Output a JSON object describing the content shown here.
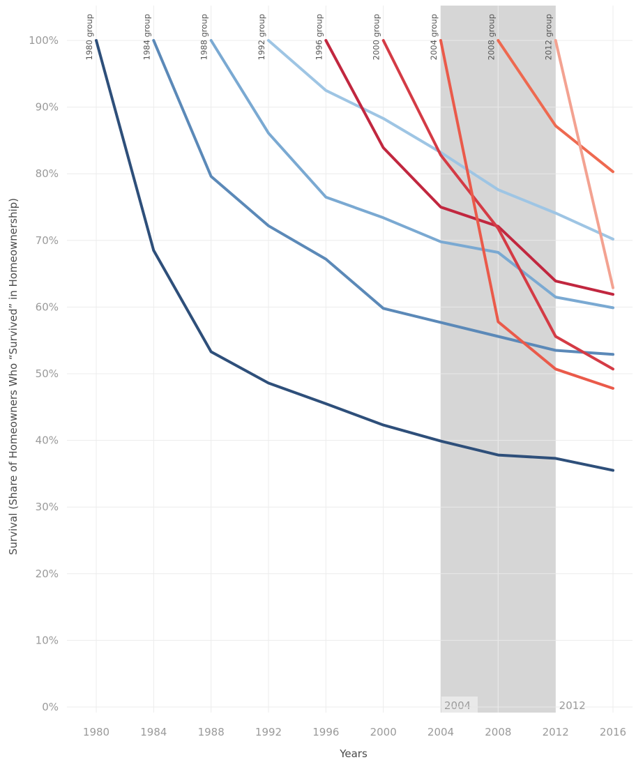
{
  "chart_data": {
    "type": "line",
    "title": "",
    "xlabel": "Years",
    "ylabel": "Survival (Share of Homeowners Who “Survived” in Homeownership)",
    "x_ticks": [
      "1980",
      "1984",
      "1988",
      "1992",
      "1996",
      "2000",
      "2004",
      "2008",
      "2012",
      "2016"
    ],
    "y_ticks": [
      "0%",
      "10%",
      "20%",
      "30%",
      "40%",
      "50%",
      "60%",
      "70%",
      "80%",
      "90%",
      "100%"
    ],
    "xlim": [
      1978,
      2017.5
    ],
    "ylim": [
      0,
      100
    ],
    "grid": true,
    "shaded_band": {
      "from": 2004,
      "to": 2012,
      "color": "#d6d6d6",
      "labels": [
        "2004",
        "2012"
      ]
    },
    "series": [
      {
        "name": "1980 group",
        "color": "#2e4f7a",
        "x": [
          1980,
          1984,
          1988,
          1992,
          1996,
          2000,
          2004,
          2008,
          2012,
          2016
        ],
        "values": [
          100,
          68.5,
          53.3,
          48.6,
          45.5,
          42.3,
          39.9,
          37.8,
          37.3,
          35.5
        ]
      },
      {
        "name": "1984 group",
        "color": "#5b89b8",
        "x": [
          1984,
          1988,
          1992,
          1996,
          2000,
          2004,
          2008,
          2012,
          2016
        ],
        "values": [
          100,
          79.6,
          72.2,
          67.2,
          59.8,
          57.7,
          55.6,
          53.5,
          52.9
        ]
      },
      {
        "name": "1988 group",
        "color": "#7aa9d2",
        "x": [
          1988,
          1992,
          1996,
          2000,
          2004,
          2008,
          2012,
          2016
        ],
        "values": [
          100,
          86.1,
          76.5,
          73.4,
          69.8,
          68.2,
          61.5,
          59.9
        ]
      },
      {
        "name": "1992 group",
        "color": "#9ec5e4",
        "x": [
          1992,
          1996,
          2000,
          2004,
          2008,
          2012,
          2016
        ],
        "values": [
          100,
          92.5,
          88.3,
          83.2,
          77.6,
          74.1,
          70.2
        ]
      },
      {
        "name": "1996 group",
        "color": "#c1273f",
        "x": [
          1996,
          2000,
          2004,
          2008,
          2012,
          2016
        ],
        "values": [
          100,
          83.9,
          75.0,
          72.1,
          63.9,
          61.9
        ]
      },
      {
        "name": "2000 group",
        "color": "#d43b45",
        "x": [
          2000,
          2004,
          2008,
          2012,
          2016
        ],
        "values": [
          100,
          82.8,
          71.8,
          55.6,
          50.7
        ]
      },
      {
        "name": "2004 group",
        "color": "#ea5a4a",
        "x": [
          2004,
          2008,
          2012,
          2016
        ],
        "values": [
          100,
          57.8,
          50.7,
          47.8
        ]
      },
      {
        "name": "2008 group",
        "color": "#ee6950",
        "x": [
          2008,
          2012,
          2016
        ],
        "values": [
          100,
          87.2,
          80.3
        ]
      },
      {
        "name": "2012 group",
        "color": "#f3a291",
        "x": [
          2012,
          2016
        ],
        "values": [
          100,
          62.9
        ]
      }
    ]
  }
}
